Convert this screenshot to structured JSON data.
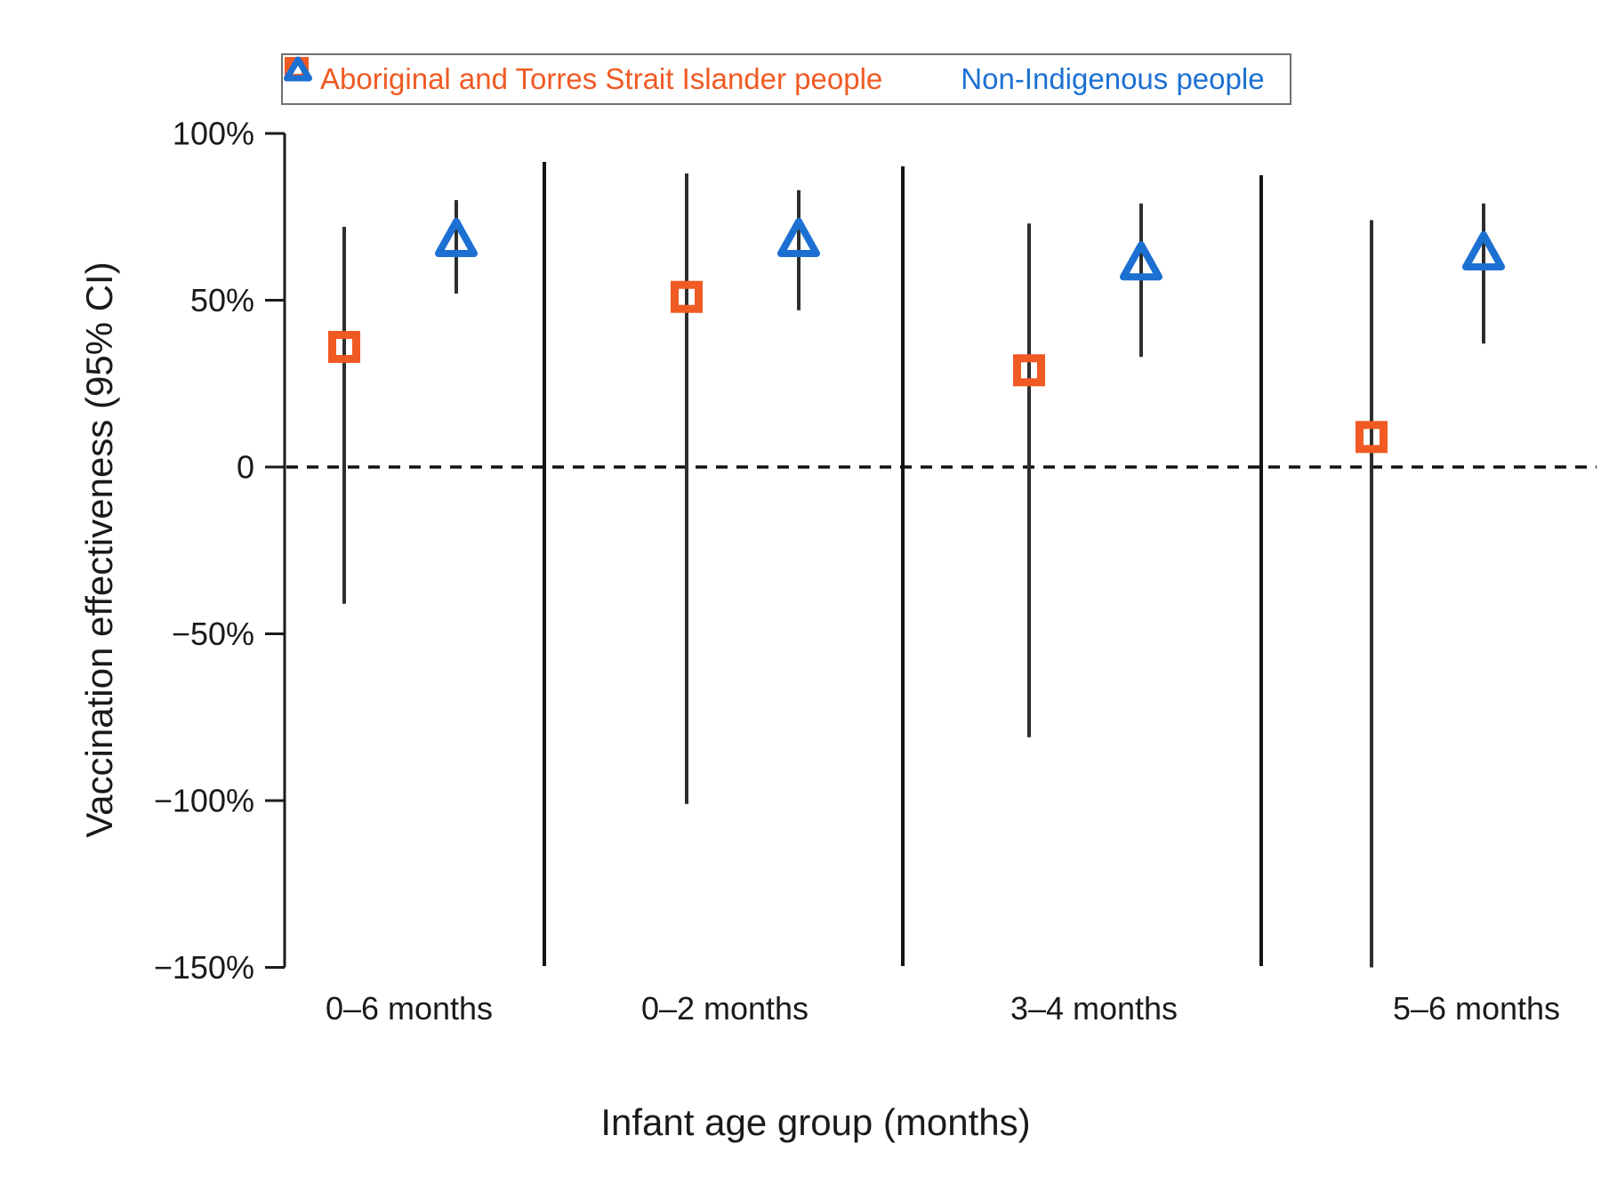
{
  "chart_data": {
    "type": "scatter",
    "subtype": "point-estimate-with-95ci-error-bars",
    "title": "",
    "xlabel": "Infant age group (months)",
    "ylabel": "Vaccination effectiveness (95% CI)",
    "categories": [
      "0–6 months",
      "0–2 months",
      "3–4 months",
      "5–6 months"
    ],
    "y_axis": {
      "unit": "%",
      "ylim": [
        -150,
        100
      ],
      "ticks": [
        100,
        50,
        0,
        -50,
        -100,
        -150
      ],
      "tick_labels": [
        "100%",
        "50%",
        "0",
        "−50%",
        "−100%",
        "−150%"
      ]
    },
    "zero_reference_line": {
      "value": 0,
      "style": "dashed",
      "color": "#111111"
    },
    "group_separator_lines": {
      "between_groups": true,
      "color": "#141414"
    },
    "grid": false,
    "legend_position": "top-center",
    "series": [
      {
        "name": "Aboriginal and Torres Strait Islander people",
        "marker": "square-outline",
        "color": "#F05A23",
        "estimates": [
          36,
          51,
          29,
          9
        ],
        "ci_low": [
          -41,
          -101,
          -81,
          -150
        ],
        "ci_high": [
          72,
          88,
          73,
          74
        ],
        "ci_low_clipped_at_axis_min": [
          false,
          false,
          false,
          true
        ]
      },
      {
        "name": "Non-Indigenous people",
        "marker": "triangle-outline",
        "color": "#1C70D2",
        "estimates": [
          68,
          68,
          61,
          64
        ],
        "ci_low": [
          52,
          47,
          33,
          37
        ],
        "ci_high": [
          80,
          83,
          79,
          79
        ],
        "ci_low_clipped_at_axis_min": [
          false,
          false,
          false,
          false
        ]
      }
    ]
  }
}
